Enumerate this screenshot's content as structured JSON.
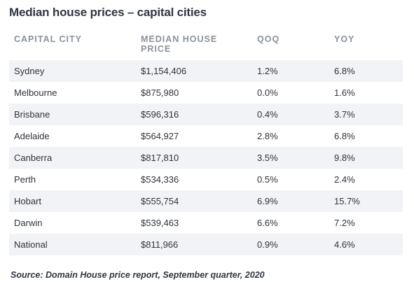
{
  "title": "Median house prices – capital cities",
  "source": "Source: Domain House price report, September quarter, 2020",
  "chart_data": {
    "type": "table",
    "title": "Median house prices – capital cities",
    "columns": [
      "CAPITAL CITY",
      "MEDIAN HOUSE PRICE",
      "QOQ",
      "YOY"
    ],
    "column_header_lines": [
      [
        "CAPITAL CITY"
      ],
      [
        "MEDIAN HOUSE",
        "PRICE"
      ],
      [
        "QOQ"
      ],
      [
        "YOY"
      ]
    ],
    "rows": [
      [
        "Sydney",
        "$1,154,406",
        "1.2%",
        "6.8%"
      ],
      [
        "Melbourne",
        "$875,980",
        "0.0%",
        "1.6%"
      ],
      [
        "Brisbane",
        "$596,316",
        "0.4%",
        "3.7%"
      ],
      [
        "Adelaide",
        "$564,927",
        "2.8%",
        "6.8%"
      ],
      [
        "Canberra",
        "$817,810",
        "3.5%",
        "9.8%"
      ],
      [
        "Perth",
        "$534,336",
        "0.5%",
        "2.4%"
      ],
      [
        "Hobart",
        "$555,754",
        "6.9%",
        "15.7%"
      ],
      [
        "Darwin",
        "$539,463",
        "6.6%",
        "7.2%"
      ],
      [
        "National",
        "$811,966",
        "0.9%",
        "4.6%"
      ]
    ],
    "source": "Source: Domain House price report, September quarter, 2020"
  },
  "colors": {
    "title": "#2e3744",
    "header_text": "#8a929c",
    "row_shade": "#f1f3f6",
    "body_text": "#30343a"
  }
}
